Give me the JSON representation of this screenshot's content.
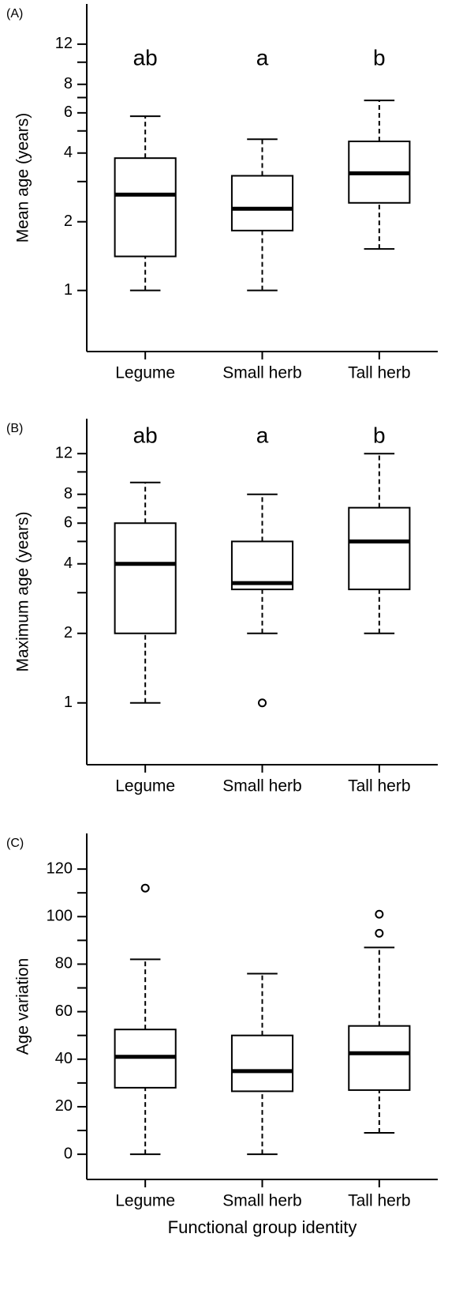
{
  "chart_data": [
    {
      "type": "box",
      "label": "(A)",
      "ylabel": "Mean age (years)",
      "log_scale": true,
      "categories": [
        "Legume",
        "Small herb",
        "Tall herb"
      ],
      "annotations": [
        "ab",
        "a",
        "b"
      ],
      "boxes": [
        {
          "whislo": 1,
          "q1": 1.41,
          "med": 2.63,
          "q3": 3.8,
          "whishi": 5.8,
          "fliers": []
        },
        {
          "whislo": 1,
          "q1": 1.83,
          "med": 2.28,
          "q3": 3.18,
          "whishi": 4.6,
          "fliers": []
        },
        {
          "whislo": 1.52,
          "q1": 2.42,
          "med": 3.26,
          "q3": 4.5,
          "whishi": 6.8,
          "fliers": []
        }
      ],
      "ylim": [
        0.54,
        18
      ],
      "yticks": [
        1,
        2,
        4,
        6,
        8,
        12
      ],
      "yminor": [
        3,
        5,
        7,
        10
      ]
    },
    {
      "type": "box",
      "label": "(B)",
      "ylabel": "Maximum age (years)",
      "log_scale": true,
      "categories": [
        "Legume",
        "Small herb",
        "Tall herb"
      ],
      "annotations": [
        "ab",
        "a",
        "b"
      ],
      "boxes": [
        {
          "whislo": 1,
          "q1": 2,
          "med": 4,
          "q3": 6,
          "whishi": 9,
          "fliers": []
        },
        {
          "whislo": 2,
          "q1": 3.1,
          "med": 3.3,
          "q3": 5,
          "whishi": 8,
          "fliers": [
            1
          ]
        },
        {
          "whislo": 2,
          "q1": 3.1,
          "med": 5,
          "q3": 7,
          "whishi": 12,
          "fliers": []
        }
      ],
      "ylim": [
        0.54,
        17
      ],
      "yticks": [
        1,
        2,
        4,
        6,
        8,
        12
      ],
      "yminor": [
        3,
        5,
        7,
        10
      ]
    },
    {
      "type": "box",
      "label": "(C)",
      "ylabel": "Age variation",
      "xlabel": "Functional group identity",
      "log_scale": false,
      "categories": [
        "Legume",
        "Small herb",
        "Tall herb"
      ],
      "boxes": [
        {
          "whislo": 0,
          "q1": 28,
          "med": 41,
          "q3": 52.5,
          "whishi": 82,
          "fliers": [
            112
          ]
        },
        {
          "whislo": 0,
          "q1": 26.5,
          "med": 35,
          "q3": 50,
          "whishi": 76,
          "fliers": []
        },
        {
          "whislo": 9,
          "q1": 27,
          "med": 42.5,
          "q3": 54,
          "whishi": 87,
          "fliers": [
            93,
            101
          ]
        }
      ],
      "ylim": [
        -10.6,
        135
      ],
      "yticks": [
        0,
        20,
        40,
        60,
        80,
        100,
        120
      ],
      "yminor": [
        10,
        30,
        50,
        70,
        90,
        110
      ]
    }
  ]
}
